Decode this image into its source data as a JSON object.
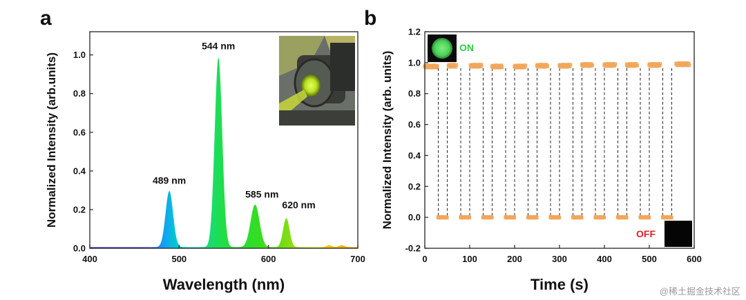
{
  "watermark": "@稀土掘金技术社区",
  "chart_data": [
    {
      "type": "line",
      "panel": "a",
      "xlabel": "Wavelength (nm)",
      "ylabel": "Normalized Intensity (arb.units)",
      "xlim": [
        400,
        700
      ],
      "ylim": [
        0,
        1.12
      ],
      "xticks": [
        "400",
        "500",
        "600",
        "700"
      ],
      "yticks": [
        "0.0",
        "0.2",
        "0.4",
        "0.6",
        "0.8",
        "1.0"
      ],
      "peaks": [
        {
          "x": 489,
          "y": 0.29,
          "label": "489 nm"
        },
        {
          "x": 544,
          "y": 0.98,
          "label": "544 nm"
        },
        {
          "x": 585,
          "y": 0.22,
          "label": "585 nm"
        },
        {
          "x": 620,
          "y": 0.15,
          "label": "620 nm"
        }
      ],
      "inset": "photo of green emitting device",
      "colors": {
        "blue": "#1e90ff",
        "cyan": "#00c8d2",
        "green": "#22dd44",
        "yellow": "#e8d800",
        "orange": "#ff9a00"
      }
    },
    {
      "type": "scatter",
      "panel": "b",
      "xlabel": "Time (s)",
      "ylabel": "Normalized Intensity (arb. units)",
      "xlim": [
        0,
        600
      ],
      "ylim": [
        -0.2,
        1.2
      ],
      "xticks": [
        "0",
        "100",
        "200",
        "300",
        "400",
        "500",
        "600"
      ],
      "yticks": [
        "-0.2",
        "0.0",
        "0.2",
        "0.4",
        "0.6",
        "0.8",
        "1.0",
        "1.2"
      ],
      "on_segments": [
        {
          "x": [
            0,
            28
          ],
          "y": 0.975
        },
        {
          "x": 53,
          "x_end": 71,
          "y": 0.98
        },
        {
          "x": [
            102,
            127
          ],
          "y": 0.98
        },
        {
          "x": [
            150,
            172
          ],
          "y": 0.975
        },
        {
          "x": [
            200,
            225
          ],
          "y": 0.975
        },
        {
          "x": [
            250,
            273
          ],
          "y": 0.98
        },
        {
          "x": [
            300,
            325
          ],
          "y": 0.98
        },
        {
          "x": [
            350,
            373
          ],
          "y": 0.985
        },
        {
          "x": [
            400,
            425
          ],
          "y": 0.985
        },
        {
          "x": [
            450,
            473
          ],
          "y": 0.985
        },
        {
          "x": [
            500,
            525
          ],
          "y": 0.985
        },
        {
          "x": [
            560,
            590
          ],
          "y": 0.99
        }
      ],
      "off_segments": [
        {
          "x": [
            30,
            50
          ],
          "y": 0.0
        },
        {
          "x": [
            80,
            100
          ],
          "y": 0.0
        },
        {
          "x": [
            130,
            150
          ],
          "y": 0.0
        },
        {
          "x": [
            180,
            200
          ],
          "y": 0.0
        },
        {
          "x": [
            230,
            250
          ],
          "y": 0.0
        },
        {
          "x": [
            280,
            300
          ],
          "y": 0.0
        },
        {
          "x": [
            330,
            350
          ],
          "y": 0.0
        },
        {
          "x": [
            380,
            400
          ],
          "y": 0.0
        },
        {
          "x": [
            430,
            450
          ],
          "y": 0.0
        },
        {
          "x": [
            480,
            500
          ],
          "y": 0.0
        },
        {
          "x": [
            530,
            550
          ],
          "y": 0.0
        }
      ],
      "transitions_x": [
        30,
        50,
        80,
        100,
        130,
        150,
        180,
        200,
        230,
        250,
        280,
        300,
        330,
        350,
        380,
        400,
        430,
        450,
        480,
        500,
        530,
        550
      ],
      "on_label": "ON",
      "off_label": "OFF",
      "colors": {
        "marker": "#f2a65a",
        "on_text": "#2ecc40",
        "off_text": "#e0202a"
      }
    }
  ]
}
